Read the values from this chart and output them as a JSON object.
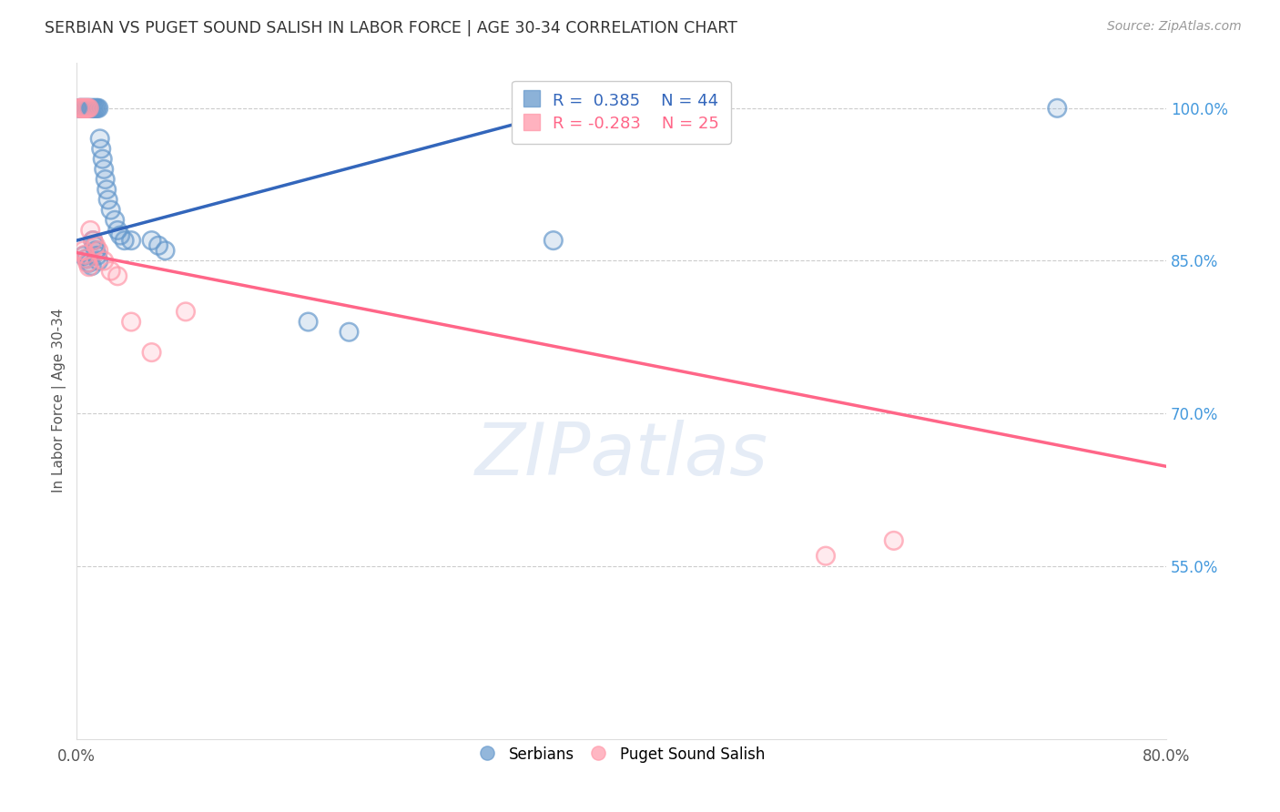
{
  "title": "SERBIAN VS PUGET SOUND SALISH IN LABOR FORCE | AGE 30-34 CORRELATION CHART",
  "source": "Source: ZipAtlas.com",
  "ylabel": "In Labor Force | Age 30-34",
  "watermark": "ZIPatlas",
  "xlim": [
    0.0,
    0.8
  ],
  "ylim": [
    0.38,
    1.045
  ],
  "xticks": [
    0.0,
    0.1,
    0.2,
    0.3,
    0.4,
    0.5,
    0.6,
    0.7,
    0.8
  ],
  "xtick_labels": [
    "0.0%",
    "",
    "",
    "",
    "",
    "",
    "",
    "",
    "80.0%"
  ],
  "yticks_right": [
    1.0,
    0.85,
    0.7,
    0.55
  ],
  "ytick_labels_right": [
    "100.0%",
    "85.0%",
    "70.0%",
    "55.0%"
  ],
  "grid_color": "#cccccc",
  "background_color": "#ffffff",
  "blue_color": "#6699cc",
  "pink_color": "#ff99aa",
  "blue_line_color": "#3366bb",
  "pink_line_color": "#ff6688",
  "legend_R_blue": "0.385",
  "legend_N_blue": "44",
  "legend_R_pink": "-0.283",
  "legend_N_pink": "25",
  "label_blue": "Serbians",
  "label_pink": "Puget Sound Salish",
  "serbian_x": [
    0.002,
    0.003,
    0.004,
    0.005,
    0.006,
    0.007,
    0.008,
    0.009,
    0.01,
    0.011,
    0.012,
    0.013,
    0.014,
    0.015,
    0.016,
    0.017,
    0.018,
    0.019,
    0.02,
    0.021,
    0.022,
    0.023,
    0.025,
    0.028,
    0.03,
    0.032,
    0.035,
    0.04,
    0.012,
    0.013,
    0.014,
    0.015,
    0.016,
    0.055,
    0.06,
    0.065,
    0.17,
    0.2,
    0.35,
    0.72,
    0.005,
    0.007,
    0.009,
    0.011
  ],
  "serbian_y": [
    1.0,
    1.0,
    1.0,
    1.0,
    1.0,
    1.0,
    1.0,
    1.0,
    1.0,
    1.0,
    1.0,
    1.0,
    1.0,
    1.0,
    1.0,
    0.97,
    0.96,
    0.95,
    0.94,
    0.93,
    0.92,
    0.91,
    0.9,
    0.89,
    0.88,
    0.875,
    0.87,
    0.87,
    0.87,
    0.865,
    0.86,
    0.855,
    0.85,
    0.87,
    0.865,
    0.86,
    0.79,
    0.78,
    0.87,
    1.0,
    0.855,
    0.852,
    0.848,
    0.845
  ],
  "puget_x": [
    0.002,
    0.003,
    0.004,
    0.005,
    0.006,
    0.007,
    0.008,
    0.009,
    0.01,
    0.012,
    0.014,
    0.016,
    0.02,
    0.025,
    0.03,
    0.04,
    0.055,
    0.08,
    0.55,
    0.6,
    0.005,
    0.006,
    0.007,
    0.008,
    0.009
  ],
  "puget_y": [
    1.0,
    1.0,
    1.0,
    1.0,
    1.0,
    1.0,
    1.0,
    1.0,
    0.88,
    0.87,
    0.865,
    0.86,
    0.85,
    0.84,
    0.835,
    0.79,
    0.76,
    0.8,
    0.56,
    0.575,
    0.86,
    0.856,
    0.852,
    0.848,
    0.844
  ],
  "blue_trend_x0": 0.0,
  "blue_trend_y0": 0.87,
  "blue_trend_x1": 0.38,
  "blue_trend_y1": 1.005,
  "pink_trend_x0": 0.0,
  "pink_trend_y0": 0.858,
  "pink_trend_x1": 0.8,
  "pink_trend_y1": 0.648
}
